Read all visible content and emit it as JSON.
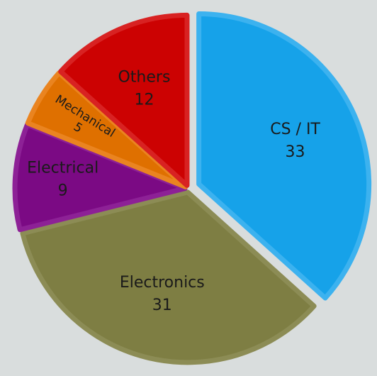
{
  "chart_data": {
    "type": "pie",
    "categories": [
      "CS / IT",
      "Electronics",
      "Electrical",
      "Mechanical",
      "Others"
    ],
    "values": [
      33,
      31,
      9,
      5,
      12
    ],
    "colors": [
      "#16a2e9",
      "#7e7e43",
      "#7b0a84",
      "#df7000",
      "#cc0202"
    ],
    "stroke_colors": [
      "#3cb2ef",
      "#8c8c55",
      "#8d2196",
      "#ea8420",
      "#d82222"
    ]
  }
}
